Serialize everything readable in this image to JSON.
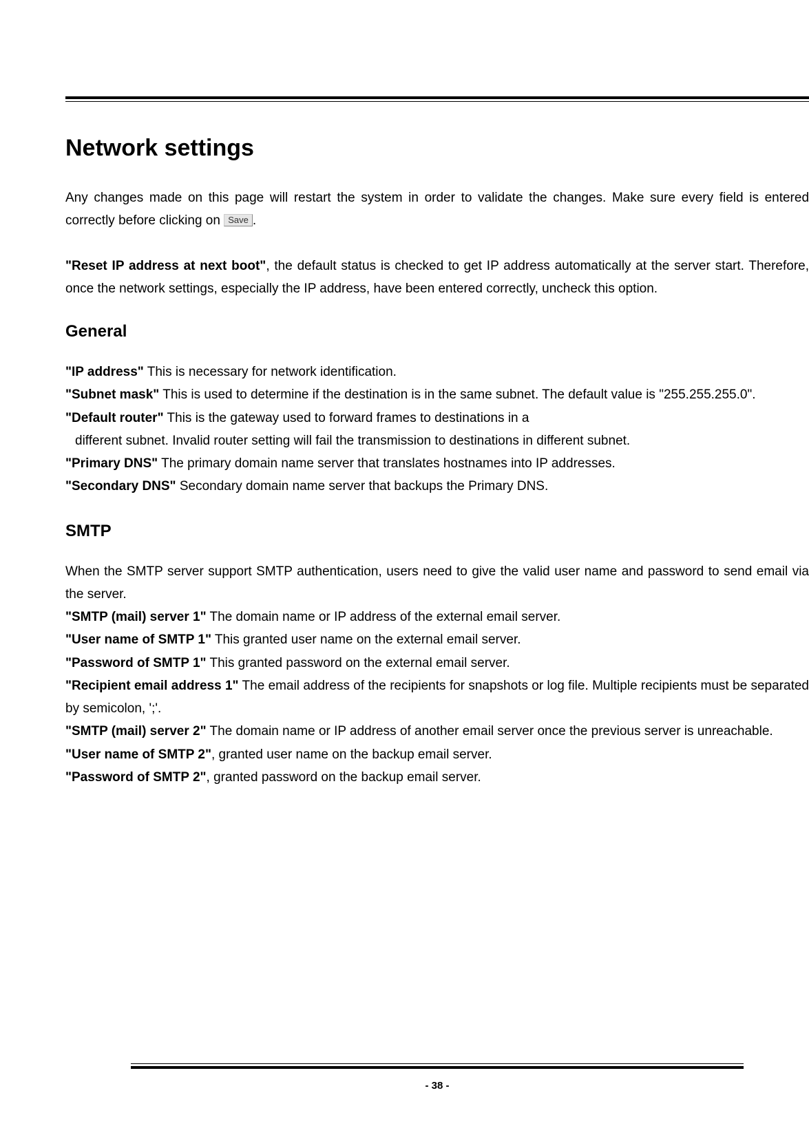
{
  "page": {
    "number": "- 38 -"
  },
  "title": "Network settings",
  "intro": {
    "line1": "Any changes made on this page will restart the system in order to validate the changes.",
    "line2_pre": "Make sure every field is entered correctly before clicking on ",
    "save_label": "Save",
    "line2_post": "."
  },
  "reset_para": {
    "bold": "\"Reset IP address at next boot\"",
    "rest": ", the default status is checked to get IP address automatically at the server start. Therefore, once the network settings, especially the IP address, have been entered correctly, uncheck this option."
  },
  "general": {
    "heading": "General",
    "ip_bold": "\"IP address\"",
    "ip_rest": " This is necessary for network identification.",
    "subnet_bold": "\"Subnet mask\"",
    "subnet_rest": " This is used to determine if the destination is in the same subnet. The default value is \"255.255.255.0\".",
    "router_bold": "\"Default router\"",
    "router_rest_a": " This is the gateway used to forward frames to destinations in a",
    "router_rest_b": "different subnet. Invalid router setting will fail the transmission to destinations in different subnet.",
    "pdns_bold": "\"Primary DNS\"",
    "pdns_rest": " The primary domain name server that translates hostnames into IP addresses.",
    "sdns_bold": "\"Secondary DNS\"",
    "sdns_rest": " Secondary domain name server that backups the Primary DNS."
  },
  "smtp": {
    "heading": "SMTP",
    "intro": "When the SMTP server support SMTP authentication, users need to give the valid user name and password to send email via the server.",
    "s1_bold": "\"SMTP (mail) server 1\"",
    "s1_rest": " The domain name or IP address of the external email server.",
    "u1_bold": "\"User name of SMTP 1\"",
    "u1_rest": " This granted user name on the external email server.",
    "p1_bold": "\"Password of SMTP 1\"",
    "p1_rest": " This granted password on the external email server.",
    "r1_bold": "\"Recipient email address 1\"",
    "r1_rest": " The email address of the recipients for snapshots or log file. Multiple recipients must be separated by semicolon, ';'.",
    "s2_bold": "\"SMTP (mail) server 2\"",
    "s2_rest": " The domain name or IP address of another email server once the previous server is unreachable.",
    "u2_bold": "\"User name of SMTP 2\"",
    "u2_rest": ", granted user name on the backup email server.",
    "p2_bold": "\"Password of SMTP 2\"",
    "p2_rest": ", granted password on the backup email server."
  }
}
